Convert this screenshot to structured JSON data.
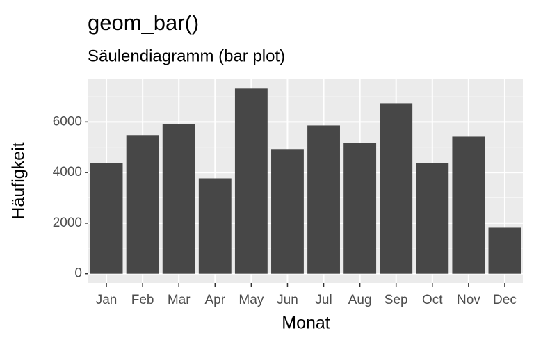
{
  "chart_data": {
    "type": "bar",
    "title": "geom_bar()",
    "subtitle": "Säulendiagramm (bar plot)",
    "x_label": "Monat",
    "y_label": "Häufigkeit",
    "categories": [
      "Jan",
      "Feb",
      "Mar",
      "Apr",
      "May",
      "Jun",
      "Jul",
      "Aug",
      "Sep",
      "Oct",
      "Nov",
      "Dec"
    ],
    "values": [
      4370,
      5480,
      5920,
      3770,
      7320,
      4930,
      5860,
      5170,
      6740,
      4370,
      5420,
      1820
    ],
    "color": "#474747",
    "ylim": [
      -366,
      7686
    ],
    "yticks": [
      0,
      2000,
      4000,
      6000
    ],
    "minor_yticks": [
      1000,
      3000,
      5000,
      7000
    ],
    "grid": true
  }
}
